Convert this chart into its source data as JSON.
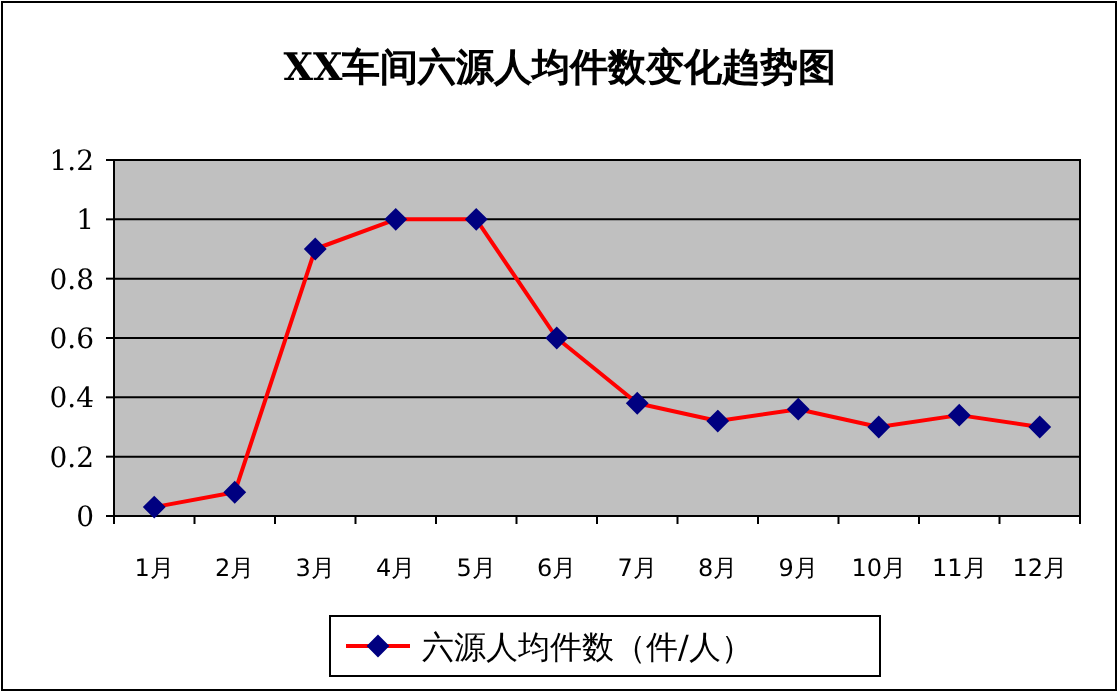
{
  "chart_data": {
    "type": "line",
    "title": "XX车间六源人均件数变化趋势图",
    "categories": [
      "1月",
      "2月",
      "3月",
      "4月",
      "5月",
      "6月",
      "7月",
      "8月",
      "9月",
      "10月",
      "11月",
      "12月"
    ],
    "series": [
      {
        "name": "六源人均件数（件/人）",
        "color": "#ff0000",
        "values": [
          0.03,
          0.08,
          0.9,
          1.0,
          1.0,
          0.6,
          0.38,
          0.32,
          0.36,
          0.3,
          0.34,
          0.3
        ]
      }
    ],
    "ylim": [
      0,
      1.2
    ],
    "yticks": [
      0,
      0.2,
      0.4,
      0.6,
      0.8,
      1,
      1.2
    ],
    "grid": "y",
    "legend": "bottom",
    "marker": "diamond",
    "line_style": "solid"
  }
}
